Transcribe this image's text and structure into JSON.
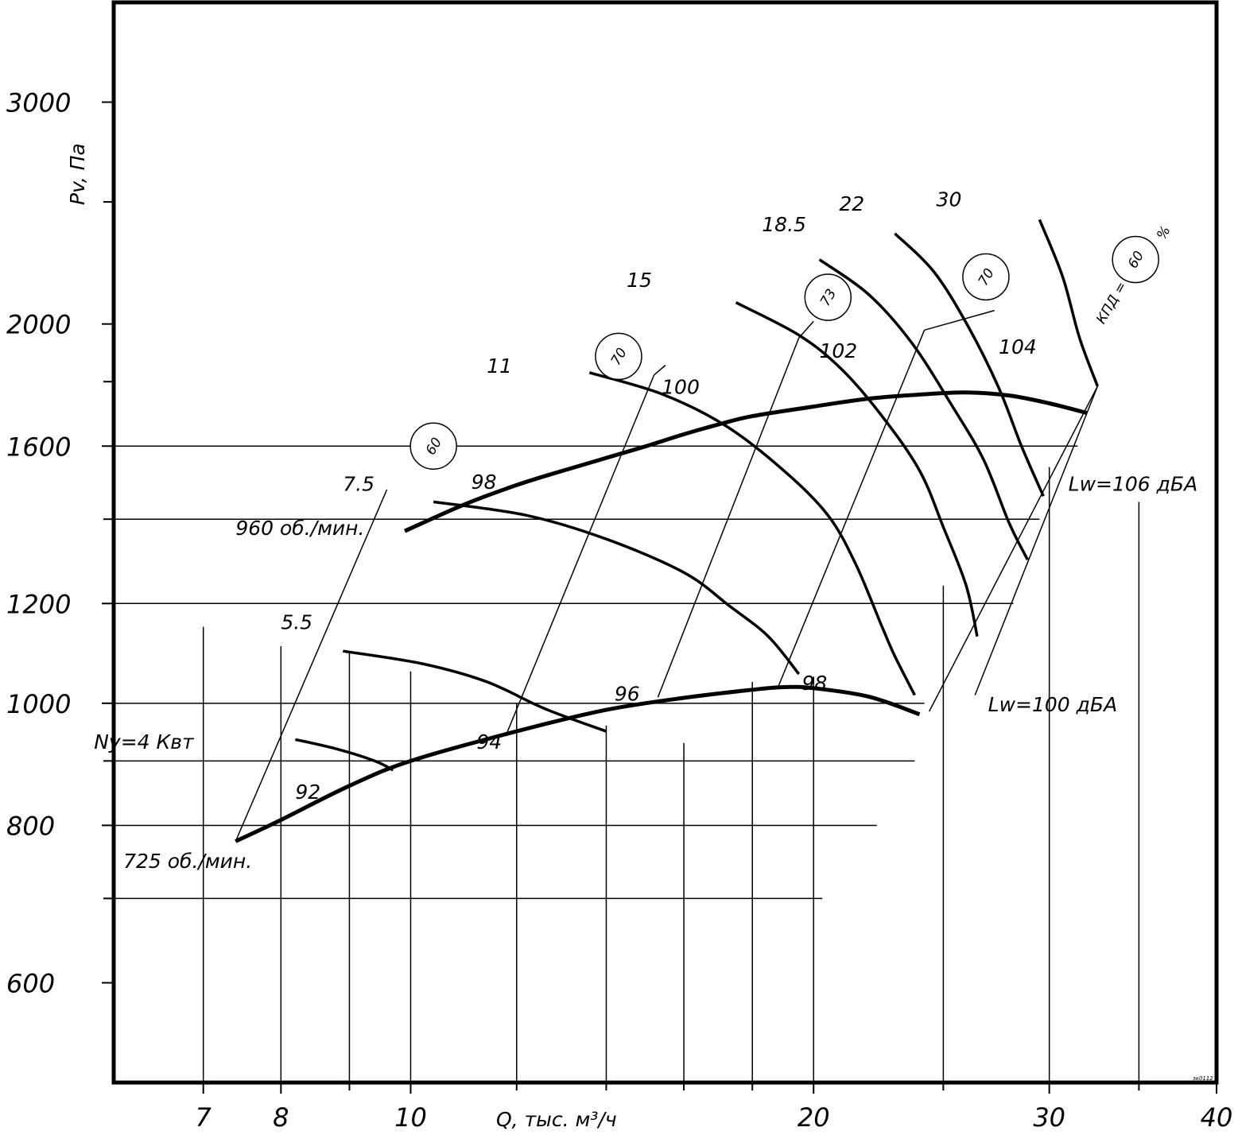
{
  "chart_data": {
    "type": "line",
    "title": "",
    "xlabel": "Q, тыс. м³/ч",
    "ylabel": "Pv, Па",
    "x_scale": "log",
    "y_scale": "log",
    "xlim": [
      6,
      40
    ],
    "ylim": [
      500,
      3600
    ],
    "x_ticks": [
      7,
      8,
      10,
      20,
      30,
      40
    ],
    "x_tick_labels": [
      "7",
      "8",
      "10",
      "20",
      "30",
      "40"
    ],
    "x_minor_ticks": [
      9,
      12,
      14,
      16,
      18,
      25,
      35
    ],
    "y_ticks": [
      600,
      800,
      1000,
      1200,
      1600,
      2000,
      3000
    ],
    "y_tick_labels": [
      "600",
      "800",
      "1000",
      "1200",
      "1600",
      "2000",
      "3000"
    ],
    "y_minor_ticks": [
      700,
      900,
      1400,
      1800,
      2500
    ],
    "speed_curves": [
      {
        "name": "960 об./мин.",
        "label_at": [
          7.4,
          1360
        ],
        "points": [
          [
            9.9,
            1370
          ],
          [
            11,
            1440
          ],
          [
            12,
            1490
          ],
          [
            13,
            1530
          ],
          [
            15,
            1600
          ],
          [
            16,
            1635
          ],
          [
            17,
            1665
          ],
          [
            18,
            1690
          ],
          [
            20,
            1720
          ],
          [
            22,
            1745
          ],
          [
            24,
            1758
          ],
          [
            26,
            1765
          ],
          [
            28,
            1755
          ],
          [
            30,
            1730
          ],
          [
            32,
            1700
          ]
        ]
      },
      {
        "name": "725 об./мин.",
        "label_at": [
          6.1,
          740
        ],
        "points": [
          [
            7.4,
            777
          ],
          [
            8,
            808
          ],
          [
            9,
            860
          ],
          [
            10,
            900
          ],
          [
            12,
            950
          ],
          [
            14,
            988
          ],
          [
            16,
            1010
          ],
          [
            18,
            1025
          ],
          [
            19,
            1030
          ],
          [
            20,
            1028
          ],
          [
            22,
            1012
          ],
          [
            24,
            980
          ]
        ]
      }
    ],
    "power_curves": [
      {
        "label": "4",
        "label_prefix": "Ny=",
        "label_unit": " Квт",
        "label_at": [
          5.8,
          920
        ],
        "points": [
          [
            8.2,
            936
          ],
          [
            8.8,
            920
          ],
          [
            9.4,
            900
          ],
          [
            9.7,
            885
          ]
        ]
      },
      {
        "label": "5.5",
        "label_at": [
          8,
          1145
        ],
        "points": [
          [
            8.9,
            1100
          ],
          [
            10.2,
            1075
          ],
          [
            11.4,
            1040
          ],
          [
            12.6,
            990
          ],
          [
            14,
            950
          ]
        ]
      },
      {
        "label": "7.5",
        "label_at": [
          8.9,
          1475
        ],
        "points": [
          [
            10.4,
            1445
          ],
          [
            12.2,
            1410
          ],
          [
            14,
            1350
          ],
          [
            16,
            1270
          ],
          [
            17.3,
            1195
          ],
          [
            18.5,
            1130
          ],
          [
            19.5,
            1055
          ]
        ]
      },
      {
        "label": "11",
        "label_at": [
          11.4,
          1830
        ],
        "points": [
          [
            13.6,
            1830
          ],
          [
            15.4,
            1760
          ],
          [
            17.2,
            1660
          ],
          [
            19,
            1530
          ],
          [
            20.5,
            1410
          ],
          [
            21.5,
            1290
          ],
          [
            22.5,
            1150
          ],
          [
            23,
            1090
          ],
          [
            23.8,
            1015
          ]
        ]
      },
      {
        "label": "15",
        "label_at": [
          14.5,
          2140
        ],
        "points": [
          [
            17.5,
            2080
          ],
          [
            19.5,
            1960
          ],
          [
            21,
            1840
          ],
          [
            22.5,
            1690
          ],
          [
            24,
            1530
          ],
          [
            25,
            1380
          ],
          [
            26,
            1240
          ],
          [
            26.5,
            1130
          ]
        ]
      },
      {
        "label": "18.5",
        "label_at": [
          18.3,
          2370
        ],
        "points": [
          [
            20.2,
            2250
          ],
          [
            22,
            2110
          ],
          [
            23.7,
            1930
          ],
          [
            25.4,
            1720
          ],
          [
            26.8,
            1560
          ],
          [
            28,
            1390
          ],
          [
            28.9,
            1300
          ]
        ]
      },
      {
        "label": "22",
        "label_at": [
          20.9,
          2460
        ],
        "points": [
          [
            23,
            2360
          ],
          [
            24.6,
            2200
          ],
          [
            26.1,
            1990
          ],
          [
            27.5,
            1780
          ],
          [
            28.6,
            1600
          ],
          [
            29.7,
            1460
          ]
        ]
      },
      {
        "label": "30",
        "label_at": [
          24.7,
          2480
        ],
        "points": [
          [
            29.5,
            2420
          ],
          [
            30.7,
            2180
          ],
          [
            31.6,
            1950
          ],
          [
            32.6,
            1785
          ]
        ]
      }
    ],
    "noise_lines": [
      {
        "label": "92",
        "label_at": [
          8.2,
          840
        ],
        "points": [
          [
            7.4,
            777
          ],
          [
            9.6,
            1478
          ]
        ]
      },
      {
        "label": "94",
        "label_at": [
          11.2,
          920
        ],
        "points": [
          [
            11.8,
            947
          ],
          [
            15.2,
            1822
          ]
        ]
      },
      {
        "label": "96",
        "label_at": [
          14.2,
          1005
        ],
        "points": [
          [
            15.3,
            1011
          ],
          [
            19.5,
            1950
          ]
        ]
      },
      {
        "label": "98",
        "label_at": [
          19.6,
          1025
        ],
        "points": [
          [
            18.8,
            1028
          ],
          [
            24.2,
            1978
          ]
        ]
      },
      {
        "label": "98",
        "label_at": [
          11.1,
          1480
        ],
        "points": null
      }
    ],
    "noise_labels_high": [
      {
        "label": "100",
        "label_at": [
          15.4,
          1760
        ]
      },
      {
        "label": "102",
        "label_at": [
          20.2,
          1880
        ]
      },
      {
        "label": "104",
        "label_at": [
          27.5,
          1895
        ]
      }
    ],
    "lw_limit_line": {
      "points": [
        [
          24.4,
          985
        ],
        [
          32.6,
          1785
        ]
      ],
      "labels": [
        {
          "text": "Lw=100 дБА",
          "label_at": [
            27,
            985
          ]
        },
        {
          "text": "Lw=106 дБА",
          "label_at": [
            31,
            1475
          ]
        }
      ]
    },
    "efficiency_marks": [
      {
        "value": "60",
        "label_at": [
          10.4,
          1600
        ]
      },
      {
        "value": "70",
        "label_at": [
          14.3,
          1885
        ]
      },
      {
        "value": "73",
        "label_at": [
          20.5,
          2100
        ]
      },
      {
        "value": "70",
        "label_at": [
          26.9,
          2180
        ]
      },
      {
        "value": "60",
        "label_at": [
          34.8,
          2250
        ]
      }
    ],
    "efficiency_prefix": "КПД =",
    "efficiency_unit": "%",
    "grid": true,
    "corner_note": "зк0112"
  }
}
